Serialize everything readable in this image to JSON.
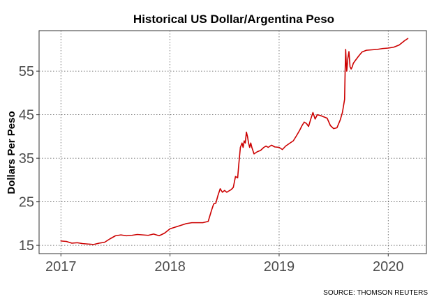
{
  "chart_data": {
    "type": "line",
    "title": "Historical US Dollar/Argentina Peso",
    "xlabel": "",
    "ylabel": "Dollars Per Peso",
    "source": "SOURCE: THOMSON REUTERS",
    "x_ticks": [
      {
        "value": 2017,
        "label": "2017"
      },
      {
        "value": 2018,
        "label": "2018"
      },
      {
        "value": 2019,
        "label": "2019"
      },
      {
        "value": 2020,
        "label": "2020"
      }
    ],
    "y_ticks": [
      {
        "value": 15,
        "label": "15"
      },
      {
        "value": 25,
        "label": "25"
      },
      {
        "value": 35,
        "label": "35"
      },
      {
        "value": 45,
        "label": "45"
      },
      {
        "value": 55,
        "label": "55"
      }
    ],
    "xlim": [
      2016.8,
      2020.35
    ],
    "ylim": [
      13.1,
      64.3
    ],
    "grid": true,
    "line_color": "#cc0000",
    "series": [
      {
        "x": [
          2017.0,
          2017.05,
          2017.1,
          2017.15,
          2017.2,
          2017.25,
          2017.3,
          2017.35,
          2017.4,
          2017.45,
          2017.5,
          2017.55,
          2017.6,
          2017.65,
          2017.7,
          2017.75,
          2017.8,
          2017.85,
          2017.9,
          2017.95,
          2018.0,
          2018.05,
          2018.1,
          2018.15,
          2018.2,
          2018.25,
          2018.3,
          2018.35,
          2018.38,
          2018.4,
          2018.42,
          2018.44,
          2018.46,
          2018.48,
          2018.5,
          2018.52,
          2018.54,
          2018.56,
          2018.58,
          2018.6,
          2018.62,
          2018.63,
          2018.645,
          2018.66,
          2018.67,
          2018.68,
          2018.69,
          2018.7,
          2018.71,
          2018.72,
          2018.73,
          2018.74,
          2018.75,
          2018.77,
          2018.8,
          2018.83,
          2018.86,
          2018.88,
          2018.9,
          2018.93,
          2018.96,
          2019.0,
          2019.03,
          2019.06,
          2019.1,
          2019.13,
          2019.16,
          2019.19,
          2019.21,
          2019.23,
          2019.25,
          2019.27,
          2019.29,
          2019.31,
          2019.33,
          2019.35,
          2019.38,
          2019.41,
          2019.44,
          2019.47,
          2019.5,
          2019.53,
          2019.56,
          2019.58,
          2019.6,
          2019.605,
          2019.61,
          2019.615,
          2019.62,
          2019.63,
          2019.64,
          2019.65,
          2019.66,
          2019.67,
          2019.68,
          2019.7,
          2019.73,
          2019.76,
          2019.8,
          2019.85,
          2019.9,
          2019.95,
          2020.0,
          2020.05,
          2020.1,
          2020.15,
          2020.18
        ],
        "values": [
          16.0,
          15.9,
          15.5,
          15.6,
          15.4,
          15.3,
          15.2,
          15.5,
          15.7,
          16.5,
          17.2,
          17.4,
          17.2,
          17.3,
          17.5,
          17.4,
          17.3,
          17.6,
          17.2,
          17.8,
          18.8,
          19.2,
          19.6,
          20.0,
          20.2,
          20.2,
          20.2,
          20.5,
          23.0,
          24.5,
          24.7,
          26.5,
          28.0,
          27.2,
          27.6,
          27.2,
          27.5,
          27.8,
          28.3,
          30.8,
          30.5,
          33.5,
          37.5,
          38.5,
          37.5,
          39.0,
          38.5,
          41.0,
          40.0,
          38.5,
          37.5,
          38.5,
          37.5,
          36.0,
          36.5,
          36.8,
          37.5,
          37.8,
          37.5,
          38.0,
          37.6,
          37.5,
          37.0,
          37.8,
          38.5,
          39.0,
          40.2,
          41.5,
          42.5,
          43.3,
          43.0,
          42.3,
          44.0,
          45.5,
          44.0,
          45.0,
          44.8,
          44.5,
          44.2,
          42.5,
          41.8,
          42.0,
          43.8,
          45.5,
          48.5,
          55.0,
          60.0,
          57.0,
          55.0,
          58.0,
          59.5,
          56.0,
          55.5,
          56.0,
          56.8,
          57.5,
          58.5,
          59.4,
          59.8,
          59.9,
          60.0,
          60.2,
          60.3,
          60.5,
          61.0,
          62.0,
          62.5
        ]
      }
    ]
  }
}
